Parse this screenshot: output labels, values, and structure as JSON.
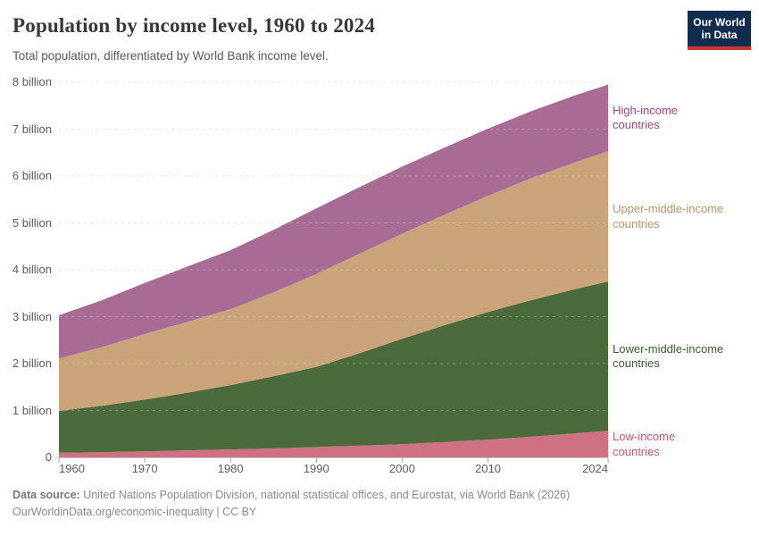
{
  "header": {
    "title": "Population by income level, 1960 to 2024",
    "subtitle": "Total population, differentiated by World Bank income level.",
    "logo": {
      "line1": "Our World",
      "line2": "in Data",
      "bg_color": "#102d4f",
      "bar_color": "#c8372d"
    }
  },
  "chart_data": {
    "type": "area",
    "stacked": true,
    "title": "Population by income level, 1960 to 2024",
    "xlabel": "",
    "ylabel": "Population",
    "unit": "billion people",
    "grid": "horizontal dashed",
    "legend_position": "right-edge colored labels",
    "xlim": [
      1960,
      2024
    ],
    "ylim": [
      0,
      8
    ],
    "x": [
      1960,
      1965,
      1970,
      1975,
      1980,
      1985,
      1990,
      1995,
      2000,
      2005,
      2010,
      2015,
      2020,
      2024
    ],
    "x_tick_labels": [
      "1960",
      "1970",
      "1980",
      "1990",
      "2000",
      "2010",
      "2024"
    ],
    "x_tick_values": [
      1960,
      1970,
      1980,
      1990,
      2000,
      2010,
      2024
    ],
    "y_tick_values": [
      0,
      1,
      2,
      3,
      4,
      5,
      6,
      7,
      8
    ],
    "y_tick_labels": [
      "0",
      "1 billion",
      "2 billion",
      "3 billion",
      "4 billion",
      "5 billion",
      "6 billion",
      "7 billion",
      "8 billion"
    ],
    "series": [
      {
        "name": "Low-income countries",
        "label_lines": "Low-income\ncountries",
        "color": "#cf7183",
        "label_color": "#c9566f",
        "values": [
          0.1,
          0.11,
          0.13,
          0.15,
          0.17,
          0.19,
          0.22,
          0.25,
          0.28,
          0.33,
          0.38,
          0.44,
          0.51,
          0.57
        ]
      },
      {
        "name": "Lower-middle-income countries",
        "label_lines": "Lower-middle-income\ncountries",
        "color": "#4c6b3c",
        "label_color": "#3b5a30",
        "values": [
          0.89,
          0.99,
          1.1,
          1.23,
          1.37,
          1.54,
          1.71,
          1.97,
          2.25,
          2.49,
          2.72,
          2.91,
          3.07,
          3.18
        ]
      },
      {
        "name": "Upper-middle-income countries",
        "label_lines": "Upper-middle-income\ncountries",
        "color": "#c8a478",
        "label_color": "#bf9361",
        "values": [
          1.12,
          1.25,
          1.4,
          1.51,
          1.62,
          1.79,
          1.98,
          2.12,
          2.24,
          2.36,
          2.48,
          2.6,
          2.7,
          2.78
        ]
      },
      {
        "name": "High-income countries",
        "label_lines": "High-income\ncountries",
        "color": "#a76b94",
        "label_color": "#a2467d",
        "values": [
          0.92,
          1.0,
          1.09,
          1.18,
          1.26,
          1.33,
          1.4,
          1.42,
          1.43,
          1.43,
          1.43,
          1.43,
          1.43,
          1.42
        ]
      }
    ],
    "colors": {
      "gridline": "#dcdcdc",
      "baseline": "#c9c9c9",
      "tick": "#a3a3a3",
      "axis_text": "#5b5b5b"
    }
  },
  "footer": {
    "source_label": "Data source:",
    "source_text": " United Nations Population Division, national statistical offices, and Eurostat, via World Bank (2026)",
    "link_line": "OurWorldinData.org/economic-inequality | CC BY"
  }
}
